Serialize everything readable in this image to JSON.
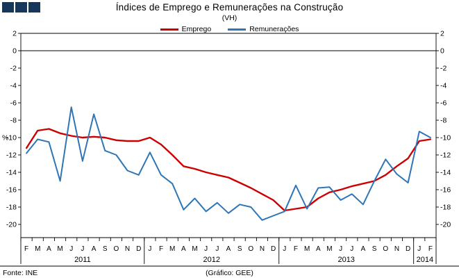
{
  "logo": {
    "color": "#16365C"
  },
  "header": {
    "title": "Índices de Emprego e Remunerações na Construção",
    "subtitle": "(VH)"
  },
  "footer": {
    "source": "Fonte: INE",
    "credit": "(Gráfico: GEE)"
  },
  "chart_data": {
    "type": "line",
    "title": "Índices de Emprego e Remunerações na Construção",
    "subtitle": "(VH)",
    "xlabel": "",
    "ylabel": "%",
    "ylim": [
      -20,
      2
    ],
    "ytick_step": 2,
    "grid": "zero-line-only",
    "legend_position": "top",
    "categories": [
      "F",
      "M",
      "A",
      "M",
      "J",
      "J",
      "A",
      "S",
      "O",
      "N",
      "D",
      "J",
      "F",
      "M",
      "A",
      "M",
      "J",
      "J",
      "A",
      "S",
      "O",
      "N",
      "D",
      "J",
      "F",
      "M",
      "A",
      "M",
      "J",
      "J",
      "A",
      "S",
      "O",
      "N",
      "D",
      "J",
      "F"
    ],
    "year_groups": [
      {
        "label": "2011",
        "start": 0,
        "count": 11
      },
      {
        "label": "2012",
        "start": 11,
        "count": 12
      },
      {
        "label": "2013",
        "start": 23,
        "count": 12
      },
      {
        "label": "2014",
        "start": 35,
        "count": 2
      }
    ],
    "series": [
      {
        "name": "Emprego",
        "color": "#CC0000",
        "values": [
          -11.2,
          -9.2,
          -9.0,
          -9.5,
          -9.8,
          -10.0,
          -9.9,
          -10.0,
          -10.3,
          -10.4,
          -10.4,
          -10.0,
          -10.8,
          -12.0,
          -13.3,
          -13.6,
          -14.0,
          -14.3,
          -14.6,
          -15.2,
          -15.8,
          -16.5,
          -17.2,
          -18.4,
          -18.2,
          -18.0,
          -17.0,
          -16.3,
          -16.0,
          -15.6,
          -15.3,
          -15.0,
          -14.3,
          -13.3,
          -12.4,
          -10.4,
          -10.2
        ]
      },
      {
        "name": "Remunerações",
        "color": "#2E75B6",
        "values": [
          -11.8,
          -10.2,
          -10.5,
          -15.0,
          -6.5,
          -12.7,
          -7.3,
          -11.5,
          -12.0,
          -13.8,
          -14.3,
          -11.7,
          -14.3,
          -15.3,
          -18.3,
          -17.0,
          -18.5,
          -17.5,
          -18.7,
          -17.7,
          -18.0,
          -19.5,
          -19.0,
          -18.5,
          -15.5,
          -18.2,
          -15.8,
          -15.7,
          -17.2,
          -16.5,
          -17.7,
          -15.0,
          -12.5,
          -14.2,
          -15.2,
          -9.3,
          -10.0
        ]
      }
    ]
  }
}
